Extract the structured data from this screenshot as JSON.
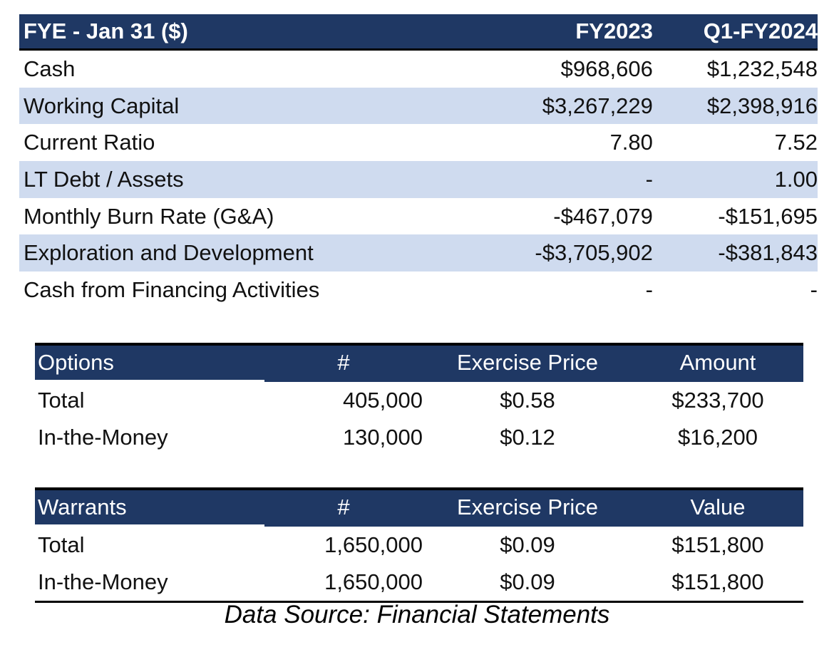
{
  "financials": {
    "header": [
      "FYE - Jan 31 ($)",
      "FY2023",
      "Q1-FY2024"
    ],
    "rows": [
      {
        "label": "Cash",
        "fy2023": "$968,606",
        "q1fy2024": "$1,232,548"
      },
      {
        "label": "Working Capital",
        "fy2023": "$3,267,229",
        "q1fy2024": "$2,398,916"
      },
      {
        "label": "Current Ratio",
        "fy2023": "7.80",
        "q1fy2024": "7.52"
      },
      {
        "label": "LT Debt / Assets",
        "fy2023": "-",
        "q1fy2024": "1.00"
      },
      {
        "label": "Monthly Burn Rate (G&A)",
        "fy2023": "-$467,079",
        "q1fy2024": "-$151,695"
      },
      {
        "label": "Exploration and Development",
        "fy2023": "-$3,705,902",
        "q1fy2024": "-$381,843"
      },
      {
        "label": "Cash from Financing Activities",
        "fy2023": "-",
        "q1fy2024": "-"
      }
    ]
  },
  "options": {
    "header": [
      "Options",
      "#",
      "Exercise Price",
      "Amount"
    ],
    "rows": [
      [
        "Total",
        "405,000",
        "$0.58",
        "$233,700"
      ],
      [
        "In-the-Money",
        "130,000",
        "$0.12",
        "$16,200"
      ]
    ]
  },
  "warrants": {
    "header": [
      "Warrants",
      "#",
      "Exercise Price",
      "Value"
    ],
    "rows": [
      [
        "Total",
        "1,650,000",
        "$0.09",
        "$151,800"
      ],
      [
        "In-the-Money",
        "1,650,000",
        "$0.09",
        "$151,800"
      ]
    ]
  },
  "footer": "Data Source: Financial Statements",
  "colors": {
    "header_bg": "#1f3864",
    "shade_bg": "#cfdbef"
  }
}
